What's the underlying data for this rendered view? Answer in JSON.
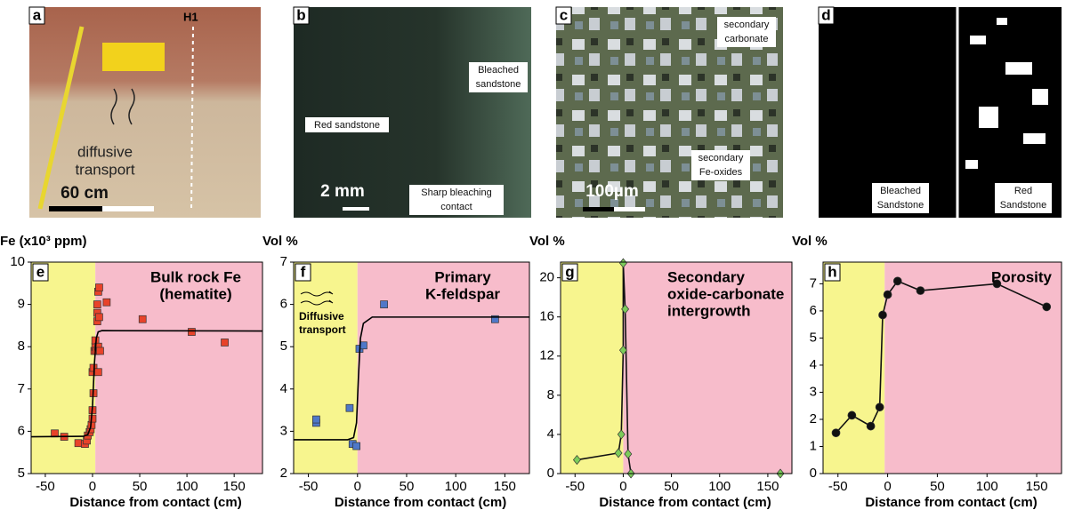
{
  "photos": [
    {
      "letter": "a",
      "site": "H1",
      "arrow_text": [
        "diffusive",
        "transport"
      ],
      "scale": "60 cm"
    },
    {
      "letter": "b",
      "bleached": [
        "Bleached",
        "sandstone"
      ],
      "red": "Red sandstone",
      "scale": "2 mm",
      "contact": [
        "Sharp bleaching",
        "contact"
      ]
    },
    {
      "letter": "c",
      "carbonate": [
        "secondary",
        "carbonate"
      ],
      "oxides": [
        "secondary",
        "Fe-oxides"
      ],
      "scale": "100µm"
    },
    {
      "letter": "d",
      "bleached": [
        "Bleached",
        "Sandstone"
      ],
      "red": [
        "Red",
        "Sandstone"
      ]
    }
  ],
  "chart_data": [
    {
      "type": "scatter",
      "letter": "e",
      "y_label": "Fe (x10³ ppm)",
      "x_label": "Distance from contact (cm)",
      "annotation": [
        "Bulk rock Fe",
        "(hematite)"
      ],
      "xlim": [
        -65,
        180
      ],
      "xticks": [
        -50,
        0,
        50,
        100,
        150
      ],
      "ylim": [
        5,
        10
      ],
      "yticks": [
        5,
        6,
        7,
        8,
        9,
        10
      ],
      "contact_x": 3,
      "left_color": "#f7f58e",
      "right_color": "#f7bccb",
      "series": [
        {
          "x": [
            -40,
            -30,
            -15,
            -8,
            -6,
            -5,
            -3,
            -2,
            -1,
            0,
            0,
            1,
            0,
            1,
            2,
            3,
            3,
            4,
            5,
            5,
            5,
            6,
            7,
            7,
            6,
            8,
            6,
            15,
            53,
            105,
            140
          ],
          "values": [
            5.95,
            5.87,
            5.72,
            5.7,
            5.78,
            5.9,
            5.98,
            6.05,
            6.15,
            6.3,
            6.5,
            6.9,
            7.4,
            7.5,
            7.9,
            8.0,
            8.15,
            7.9,
            8.6,
            8.8,
            9.0,
            9.3,
            9.4,
            8.7,
            8.0,
            7.9,
            7.4,
            9.05,
            8.65,
            8.35,
            8.1
          ],
          "color": "#e8432a",
          "marker": "square",
          "line": false
        },
        {
          "x": [
            -65,
            -10,
            -5,
            -2,
            0,
            2,
            4,
            6,
            10,
            180
          ],
          "values": [
            5.87,
            5.88,
            5.92,
            6.1,
            6.6,
            7.6,
            8.2,
            8.35,
            8.38,
            8.37
          ],
          "color": "#000000",
          "marker": "none",
          "line": true
        }
      ]
    },
    {
      "type": "scatter",
      "letter": "f",
      "y_label": "Vol %",
      "x_label": "Distance from contact (cm)",
      "annotation": [
        "Primary",
        "K-feldspar"
      ],
      "note": [
        "Diffusive",
        "transport"
      ],
      "xlim": [
        -65,
        175
      ],
      "xticks": [
        -50,
        0,
        50,
        100,
        150
      ],
      "ylim": [
        2,
        7
      ],
      "yticks": [
        2,
        3,
        4,
        5,
        6,
        7
      ],
      "contact_x": 0,
      "left_color": "#f7f58e",
      "right_color": "#f7bccb",
      "series": [
        {
          "x": [
            -42,
            -42,
            -8,
            -5,
            -1,
            2,
            6,
            27,
            140
          ],
          "values": [
            3.2,
            3.28,
            3.55,
            2.7,
            2.65,
            4.95,
            5.03,
            6.0,
            5.65
          ],
          "color": "#4f78c8",
          "marker": "square",
          "line": false
        },
        {
          "x": [
            -65,
            -10,
            -4,
            -1,
            1,
            3,
            6,
            15,
            175
          ],
          "values": [
            2.8,
            2.8,
            2.85,
            3.2,
            4.3,
            5.2,
            5.55,
            5.7,
            5.7
          ],
          "color": "#000000",
          "marker": "none",
          "line": true
        }
      ]
    },
    {
      "type": "scatter",
      "letter": "g",
      "y_label": "Vol %",
      "x_label": "Distance from contact (cm)",
      "annotation": [
        "Secondary",
        "oxide-carbonate",
        "intergrowth"
      ],
      "xlim": [
        -65,
        175
      ],
      "xticks": [
        -50,
        0,
        50,
        100,
        150
      ],
      "ylim": [
        0,
        21.6
      ],
      "yticks": [
        0,
        4,
        8,
        12,
        16,
        20
      ],
      "contact_x": 0,
      "left_color": "#f7f58e",
      "right_color": "#f7bccb",
      "series": [
        {
          "x": [
            -48,
            -5,
            -2,
            0,
            0,
            2,
            5,
            8
          ],
          "values": [
            1.4,
            2.1,
            4.0,
            12.6,
            21.5,
            16.8,
            2.0,
            0
          ],
          "color": "#7ccc5a",
          "marker": "diamond",
          "line": true
        },
        {
          "x": [
            163
          ],
          "values": [
            0
          ],
          "color": "#7ccc5a",
          "marker": "diamond",
          "line": false
        }
      ]
    },
    {
      "type": "scatter",
      "letter": "h",
      "y_label": "Vol %",
      "x_label": "Distance from contact (cm)",
      "annotation": [
        "Porosity"
      ],
      "xlim": [
        -65,
        175
      ],
      "xticks": [
        -50,
        0,
        50,
        100,
        150
      ],
      "ylim": [
        0,
        7.8
      ],
      "yticks": [
        0,
        1,
        2,
        3,
        4,
        5,
        6,
        7
      ],
      "contact_x": -3,
      "left_color": "#f7f58e",
      "right_color": "#f7bccb",
      "series": [
        {
          "x": [
            -52,
            -36,
            -17,
            -8,
            -5,
            0,
            10,
            33,
            110,
            160
          ],
          "values": [
            1.5,
            2.15,
            1.75,
            2.45,
            5.85,
            6.6,
            7.1,
            6.75,
            7.0,
            6.15
          ],
          "color": "#111111",
          "marker": "circle",
          "line": true
        }
      ]
    }
  ]
}
